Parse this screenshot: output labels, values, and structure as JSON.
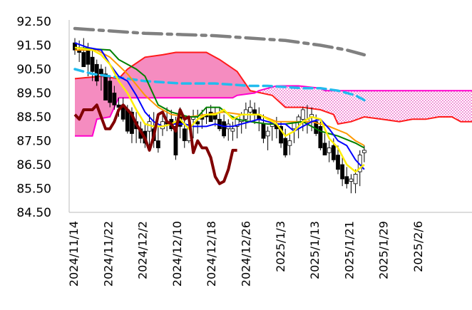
{
  "chart_data": {
    "type": "line",
    "title": "",
    "xlabel": "",
    "ylabel": "",
    "ylim": [
      84.5,
      92.5
    ],
    "yticks": [
      "84.50",
      "85.50",
      "86.50",
      "87.50",
      "88.50",
      "89.50",
      "90.50",
      "91.50",
      "92.50"
    ],
    "x_tick_labels": [
      "2024/11/14",
      "2024/11/22",
      "2024/12/2",
      "2024/12/10",
      "2024/12/18",
      "2024/12/26",
      "2025/1/3",
      "2025/1/13",
      "2025/1/21",
      "2025/1/29",
      "2025/2/6"
    ],
    "grid": false,
    "legend": "none",
    "n_days": 67,
    "colors": {
      "cloud_fill": "#f58cc0",
      "cloud_fill_later": "#e94fc0",
      "span_a": "#ff1a1a",
      "span_b": "#ff00cc",
      "tenkan": "#0000ff",
      "kijun": "#008000",
      "sma_short": "#ff9900",
      "sma_long_dashed": "#22bbee",
      "sma_very_long": "#808080",
      "bollinger_like": "#ffee00",
      "chikou": "#800000"
    },
    "candles": {
      "open": [
        91.6,
        91.3,
        91.2,
        91.3,
        91.0,
        90.7,
        90.5,
        90.3,
        90.0,
        89.5,
        89.0,
        89.0,
        88.8,
        88.7,
        88.3,
        88.0,
        87.9,
        87.9,
        88.0,
        87.5,
        88.0,
        88.3,
        88.4,
        88.1,
        88.5,
        88.0,
        87.5,
        88.4,
        88.3,
        88.5,
        88.6,
        88.7,
        88.6,
        88.4,
        88.3,
        88.0,
        87.9,
        88.1,
        88.3,
        88.4,
        88.7,
        88.8,
        88.6,
        88.2,
        87.7,
        88.1,
        88.2,
        88.1,
        87.6,
        87.3,
        88.0,
        88.3,
        88.4,
        88.3,
        88.5,
        88.3,
        88.1,
        87.4,
        87.0,
        87.3,
        86.9,
        86.5,
        86.0,
        85.8,
        85.7,
        86.2,
        87.0
      ],
      "high": [
        91.8,
        91.7,
        91.8,
        91.6,
        91.3,
        90.9,
        90.7,
        90.6,
        90.2,
        89.8,
        89.3,
        89.3,
        89.0,
        88.9,
        88.7,
        88.3,
        88.2,
        88.6,
        88.7,
        88.1,
        88.7,
        88.9,
        88.8,
        88.5,
        88.9,
        88.4,
        88.3,
        88.8,
        88.8,
        88.8,
        88.9,
        89.0,
        88.9,
        88.9,
        88.6,
        88.4,
        88.3,
        88.5,
        88.7,
        89.1,
        89.2,
        89.1,
        88.9,
        88.6,
        88.1,
        88.4,
        88.5,
        88.3,
        88.0,
        87.8,
        88.3,
        88.6,
        88.9,
        89.0,
        88.9,
        88.6,
        88.3,
        87.8,
        87.5,
        87.6,
        87.3,
        86.9,
        86.4,
        86.1,
        86.3,
        87.1,
        87.3
      ],
      "low": [
        91.1,
        90.8,
        90.6,
        90.2,
        90.0,
        89.8,
        89.6,
        89.2,
        88.9,
        88.8,
        88.5,
        88.3,
        87.8,
        87.4,
        87.4,
        87.4,
        87.2,
        87.3,
        87.2,
        87.0,
        87.7,
        87.9,
        87.9,
        86.7,
        87.6,
        87.2,
        87.4,
        87.6,
        87.8,
        88.0,
        88.2,
        88.3,
        88.1,
        87.9,
        87.6,
        87.5,
        87.5,
        87.6,
        87.8,
        88.0,
        88.3,
        88.2,
        87.9,
        87.4,
        87.1,
        87.5,
        87.6,
        87.2,
        86.8,
        86.9,
        87.4,
        87.6,
        87.9,
        87.8,
        87.9,
        87.7,
        87.1,
        86.9,
        86.6,
        86.6,
        86.1,
        85.6,
        85.5,
        85.3,
        85.3,
        85.6,
        86.6
      ],
      "close": [
        91.3,
        91.2,
        90.6,
        90.7,
        90.4,
        90.0,
        90.3,
        89.2,
        89.1,
        89.0,
        88.9,
        88.4,
        87.9,
        87.8,
        88.0,
        87.6,
        87.4,
        88.3,
        87.5,
        87.2,
        88.3,
        88.2,
        88.0,
        86.9,
        88.1,
        87.5,
        88.0,
        88.5,
        88.2,
        88.4,
        88.5,
        88.3,
        88.4,
        88.0,
        87.7,
        88.2,
        88.0,
        88.4,
        88.6,
        88.8,
        88.9,
        88.6,
        88.4,
        87.6,
        87.9,
        88.3,
        88.0,
        87.4,
        86.9,
        87.5,
        88.3,
        88.5,
        88.8,
        88.4,
        88.6,
        87.8,
        87.2,
        86.9,
        87.2,
        86.7,
        86.3,
        85.9,
        85.7,
        85.9,
        86.1,
        86.9,
        87.1
      ]
    },
    "series": [
      {
        "values": [
          [
            0,
            90.1
          ],
          [
            6,
            90.2
          ],
          [
            10,
            90.1
          ],
          [
            12,
            90.5
          ],
          [
            16,
            91.0
          ],
          [
            20,
            91.1
          ],
          [
            23,
            91.2
          ],
          [
            30,
            91.2
          ],
          [
            33,
            90.9
          ],
          [
            37,
            90.4
          ],
          [
            40,
            89.6
          ],
          [
            45,
            89.4
          ],
          [
            48,
            88.9
          ],
          [
            52,
            88.9
          ],
          [
            56,
            88.8
          ],
          [
            59,
            88.6
          ],
          [
            60,
            88.2
          ],
          [
            63,
            88.3
          ],
          [
            66,
            88.5
          ],
          [
            70,
            88.4
          ],
          [
            74,
            88.3
          ],
          [
            77,
            88.4
          ],
          [
            78,
            88.4
          ],
          [
            80,
            88.4
          ],
          [
            83,
            88.5
          ],
          [
            86,
            88.5
          ],
          [
            88,
            88.3
          ],
          [
            91,
            88.3
          ]
        ]
      },
      {
        "values": [
          [
            0,
            87.7
          ],
          [
            4,
            87.7
          ],
          [
            5,
            88.4
          ],
          [
            8,
            88.5
          ],
          [
            10,
            89.3
          ],
          [
            36,
            89.3
          ],
          [
            37,
            89.4
          ],
          [
            41,
            89.5
          ],
          [
            42,
            89.6
          ],
          [
            46,
            89.8
          ],
          [
            51,
            89.8
          ],
          [
            56,
            89.7
          ],
          [
            57,
            89.6
          ],
          [
            91,
            89.6
          ]
        ]
      },
      {
        "values": [
          [
            0,
            91.6
          ],
          [
            3,
            91.4
          ],
          [
            6,
            91.3
          ],
          [
            8,
            90.7
          ],
          [
            10,
            90.2
          ],
          [
            12,
            90.0
          ],
          [
            14,
            89.4
          ],
          [
            16,
            88.7
          ],
          [
            18,
            88.3
          ],
          [
            20,
            88.1
          ],
          [
            22,
            88.2
          ],
          [
            25,
            88.2
          ],
          [
            27,
            88.1
          ],
          [
            30,
            88.1
          ],
          [
            32,
            88.2
          ],
          [
            34,
            88.1
          ],
          [
            36,
            88.1
          ],
          [
            38,
            88.2
          ],
          [
            40,
            88.3
          ],
          [
            42,
            88.4
          ],
          [
            44,
            88.3
          ],
          [
            46,
            88.2
          ],
          [
            48,
            88.2
          ],
          [
            50,
            87.9
          ],
          [
            52,
            88.1
          ],
          [
            54,
            88.3
          ],
          [
            56,
            88.4
          ],
          [
            58,
            88.0
          ],
          [
            60,
            87.5
          ],
          [
            62,
            87.3
          ],
          [
            64,
            86.7
          ],
          [
            66,
            86.3
          ]
        ]
      },
      {
        "values": [
          [
            0,
            91.4
          ],
          [
            8,
            91.3
          ],
          [
            10,
            90.9
          ],
          [
            14,
            90.5
          ],
          [
            16,
            90.2
          ],
          [
            19,
            89.0
          ],
          [
            22,
            88.7
          ],
          [
            26,
            88.5
          ],
          [
            28,
            88.5
          ],
          [
            30,
            88.9
          ],
          [
            33,
            88.9
          ],
          [
            35,
            88.6
          ],
          [
            37,
            88.4
          ],
          [
            40,
            88.3
          ],
          [
            44,
            88.2
          ],
          [
            48,
            88.2
          ],
          [
            52,
            88.3
          ],
          [
            56,
            87.9
          ],
          [
            58,
            87.8
          ],
          [
            60,
            87.7
          ],
          [
            64,
            87.4
          ],
          [
            66,
            87.2
          ]
        ]
      },
      {
        "values": [
          [
            0,
            91.3
          ],
          [
            5,
            91.3
          ],
          [
            8,
            91.0
          ],
          [
            12,
            90.3
          ],
          [
            16,
            89.4
          ],
          [
            19,
            88.9
          ],
          [
            22,
            88.6
          ],
          [
            26,
            88.5
          ],
          [
            30,
            88.6
          ],
          [
            34,
            88.7
          ],
          [
            38,
            88.6
          ],
          [
            42,
            88.6
          ],
          [
            46,
            88.3
          ],
          [
            50,
            88.3
          ],
          [
            54,
            88.3
          ],
          [
            58,
            88.1
          ],
          [
            62,
            87.8
          ],
          [
            64,
            87.5
          ],
          [
            66,
            87.3
          ]
        ]
      },
      {
        "values": [
          [
            0,
            90.5
          ],
          [
            4,
            90.3
          ],
          [
            8,
            90.2
          ],
          [
            12,
            90.1
          ],
          [
            16,
            90.0
          ],
          [
            20,
            89.95
          ],
          [
            24,
            89.9
          ],
          [
            28,
            89.9
          ],
          [
            32,
            89.9
          ],
          [
            36,
            89.85
          ],
          [
            40,
            89.8
          ],
          [
            44,
            89.8
          ],
          [
            48,
            89.75
          ],
          [
            52,
            89.7
          ],
          [
            56,
            89.7
          ],
          [
            60,
            89.6
          ],
          [
            64,
            89.4
          ],
          [
            66,
            89.2
          ]
        ]
      },
      {
        "values": [
          [
            0,
            92.2
          ],
          [
            8,
            92.1
          ],
          [
            16,
            92.0
          ],
          [
            24,
            91.95
          ],
          [
            32,
            91.9
          ],
          [
            40,
            91.8
          ],
          [
            48,
            91.7
          ],
          [
            56,
            91.5
          ],
          [
            62,
            91.3
          ],
          [
            66,
            91.1
          ]
        ]
      },
      {
        "values": [
          [
            0,
            91.4
          ],
          [
            4,
            91.3
          ],
          [
            6,
            91.1
          ],
          [
            8,
            90.7
          ],
          [
            10,
            90.0
          ],
          [
            12,
            89.5
          ],
          [
            14,
            88.8
          ],
          [
            16,
            88.2
          ],
          [
            18,
            88.1
          ],
          [
            20,
            88.1
          ],
          [
            22,
            88.2
          ],
          [
            24,
            88.4
          ],
          [
            26,
            88.0
          ],
          [
            28,
            88.4
          ],
          [
            30,
            88.6
          ],
          [
            32,
            88.6
          ],
          [
            34,
            88.8
          ],
          [
            36,
            88.4
          ],
          [
            38,
            88.6
          ],
          [
            40,
            88.6
          ],
          [
            42,
            88.6
          ],
          [
            44,
            88.4
          ],
          [
            46,
            88.2
          ],
          [
            48,
            87.7
          ],
          [
            50,
            87.9
          ],
          [
            52,
            88.3
          ],
          [
            54,
            88.5
          ],
          [
            56,
            88.4
          ],
          [
            58,
            87.6
          ],
          [
            60,
            87.2
          ],
          [
            62,
            86.5
          ],
          [
            64,
            86.2
          ],
          [
            66,
            86.5
          ]
        ]
      },
      {
        "values": [
          [
            0,
            88.6
          ],
          [
            1,
            88.4
          ],
          [
            2,
            88.8
          ],
          [
            3,
            88.8
          ],
          [
            4,
            88.8
          ],
          [
            5,
            89.0
          ],
          [
            6,
            88.5
          ],
          [
            7,
            88.0
          ],
          [
            8,
            88.0
          ],
          [
            9,
            88.3
          ],
          [
            10,
            88.8
          ],
          [
            11,
            89.0
          ],
          [
            12,
            88.8
          ],
          [
            13,
            88.6
          ],
          [
            14,
            88.2
          ],
          [
            15,
            87.9
          ],
          [
            16,
            87.6
          ],
          [
            17,
            87.1
          ],
          [
            18,
            87.7
          ],
          [
            19,
            88.6
          ],
          [
            20,
            88.7
          ],
          [
            21,
            88.3
          ],
          [
            22,
            88.2
          ],
          [
            23,
            87.9
          ],
          [
            24,
            88.8
          ],
          [
            25,
            88.4
          ],
          [
            26,
            88.5
          ],
          [
            27,
            87.0
          ],
          [
            28,
            87.5
          ],
          [
            29,
            87.2
          ],
          [
            30,
            87.2
          ],
          [
            31,
            86.8
          ],
          [
            32,
            86.0
          ],
          [
            33,
            85.7
          ],
          [
            34,
            85.8
          ],
          [
            35,
            86.3
          ],
          [
            36,
            87.1
          ],
          [
            37,
            87.1
          ]
        ]
      }
    ]
  }
}
